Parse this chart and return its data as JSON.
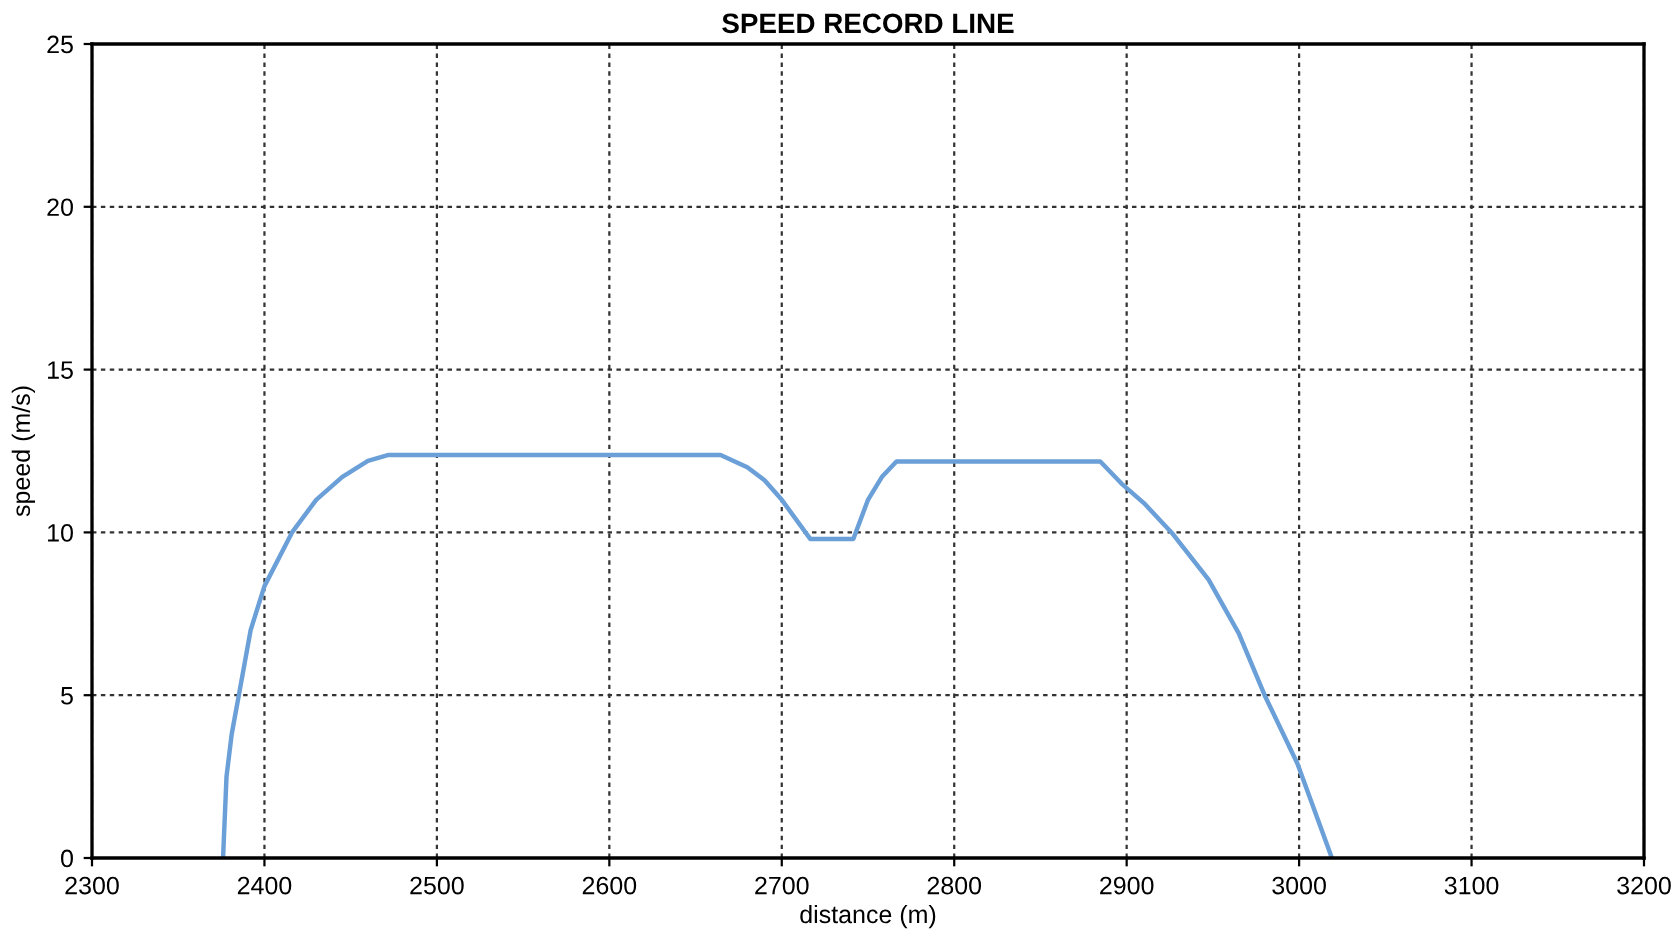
{
  "chart_data": {
    "type": "line",
    "title": "SPEED RECORD LINE",
    "xlabel": "distance (m)",
    "ylabel": "speed (m/s)",
    "series": [
      {
        "color": "#6a9fd8",
        "x": [
          2376,
          2378,
          2381,
          2385.5,
          2392,
          2400,
          2416,
          2430,
          2445,
          2460,
          2472,
          2664.5,
          2680,
          2690,
          2700,
          2716.5,
          2739.6,
          2741.5,
          2750,
          2758,
          2766.5,
          2884.7,
          2897,
          2910,
          2926,
          2947.5,
          2965,
          2980,
          2999,
          3019
        ],
        "values": [
          0,
          2.5,
          3.8,
          5.1,
          7.0,
          8.35,
          10.0,
          11.0,
          11.7,
          12.2,
          12.38,
          12.38,
          12.0,
          11.6,
          11.0,
          9.8,
          9.8,
          9.8,
          11.0,
          11.7,
          12.18,
          12.18,
          11.5,
          10.9,
          10.0,
          8.55,
          6.9,
          5.0,
          2.9,
          0
        ]
      }
    ],
    "xlim": [
      2300,
      3200
    ],
    "ylim": [
      0,
      25
    ],
    "xticks": [
      2300,
      2400,
      2500,
      2600,
      2700,
      2800,
      2900,
      3000,
      3100,
      3200
    ],
    "yticks": [
      0,
      5,
      10,
      15,
      20,
      25
    ],
    "grid": true,
    "legend": false,
    "marker": "none",
    "line_style": "solid"
  }
}
